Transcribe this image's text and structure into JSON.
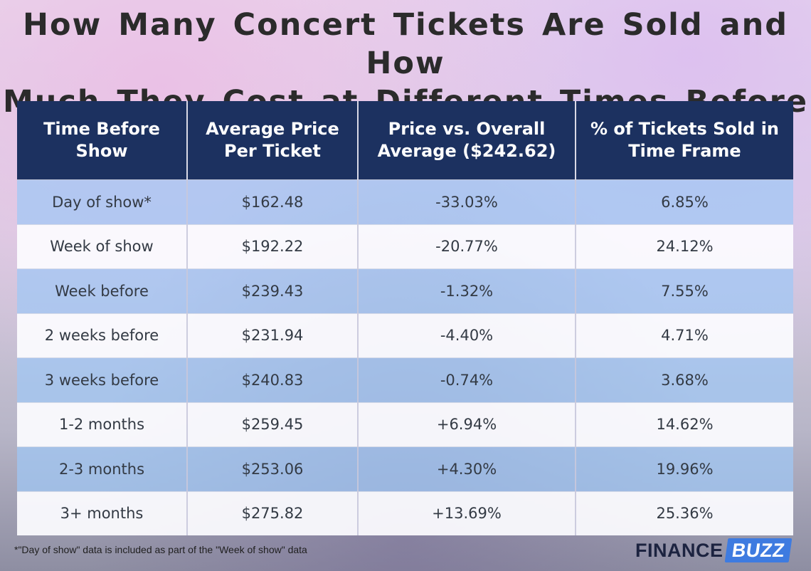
{
  "title_line1": "How Many Concert Tickets Are Sold and How",
  "title_line2": "Much They Cost at Different Times Before a Show",
  "chart_data": {
    "type": "table",
    "columns": [
      "Time Before Show",
      "Average Price Per Ticket",
      "Price vs. Overall Average ($242.62)",
      "% of Tickets Sold in Time Frame"
    ],
    "rows": [
      [
        "Day of show*",
        "$162.48",
        "-33.03%",
        "6.85%"
      ],
      [
        "Week of show",
        "$192.22",
        "-20.77%",
        "24.12%"
      ],
      [
        "Week before",
        "$239.43",
        "-1.32%",
        "7.55%"
      ],
      [
        "2 weeks before",
        "$231.94",
        "-4.40%",
        "4.71%"
      ],
      [
        "3 weeks before",
        "$240.83",
        "-0.74%",
        "3.68%"
      ],
      [
        "1-2 months",
        "$259.45",
        "+6.94%",
        "14.62%"
      ],
      [
        "2-3 months",
        "$253.06",
        "+4.30%",
        "19.96%"
      ],
      [
        "3+ months",
        "$275.82",
        "+13.69%",
        "25.36%"
      ]
    ]
  },
  "footnote": "*\"Day of show\" data is included as part of the \"Week of show\" data",
  "logo": {
    "part1": "FINANCE",
    "part2": "BUZZ"
  },
  "colors": {
    "header_bg": "#1c3160",
    "row_blue": "#a0c8f5",
    "logo_blue": "#3e7be0"
  }
}
